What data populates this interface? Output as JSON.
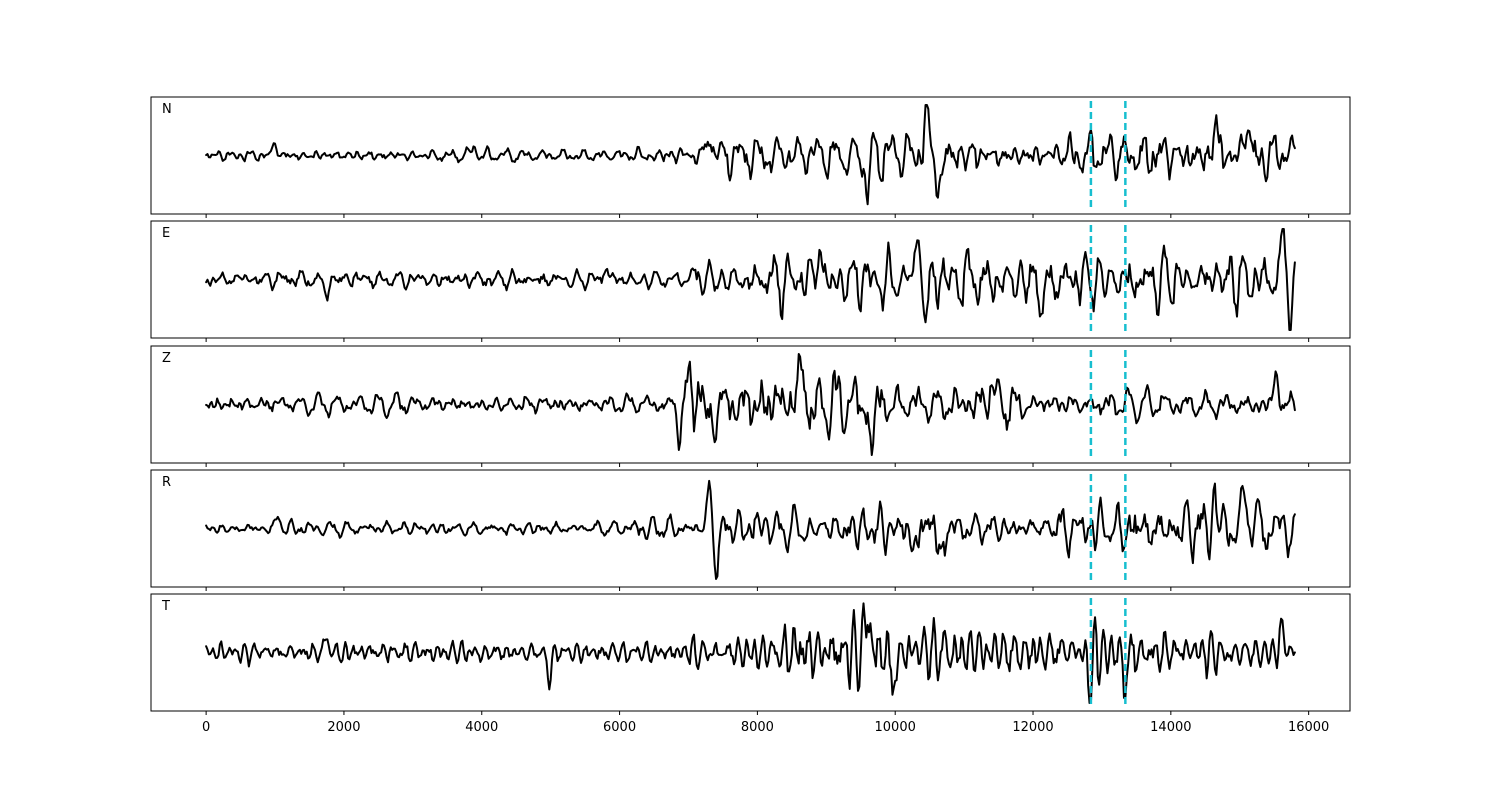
{
  "chart_data": {
    "type": "line",
    "title": "",
    "xlabel": "",
    "ylabel": "",
    "xlim": [
      -800,
      16600
    ],
    "x_ticks": [
      0,
      2000,
      4000,
      6000,
      8000,
      10000,
      12000,
      14000,
      16000
    ],
    "x_tick_labels": [
      "0",
      "2000",
      "4000",
      "6000",
      "8000",
      "10000",
      "12000",
      "14000",
      "16000"
    ],
    "y_ticks_shown": false,
    "grid": false,
    "legend": "none",
    "samples": 15800,
    "line_color": "#000000",
    "marker_color": "#17becf",
    "markers": [
      12840,
      13340
    ],
    "panels": [
      {
        "label": "N",
        "features": [
          {
            "x": 1000,
            "y": 0.28
          },
          {
            "x": 3900,
            "y": 0.22
          },
          {
            "x": 7300,
            "y": 0.55
          },
          {
            "x": 9600,
            "y": -0.72
          },
          {
            "x": 10450,
            "y": 1.0
          },
          {
            "x": 10630,
            "y": -0.9
          },
          {
            "x": 14650,
            "y": 0.75
          },
          {
            "x": 15100,
            "y": 0.85
          }
        ],
        "segments": [
          {
            "x0": 0,
            "x1": 6200,
            "amp": 0.12
          },
          {
            "x0": 6200,
            "x1": 7200,
            "amp": 0.18
          },
          {
            "x0": 7200,
            "x1": 9500,
            "amp": 0.35
          },
          {
            "x0": 9500,
            "x1": 11300,
            "amp": 0.45
          },
          {
            "x0": 11300,
            "x1": 12500,
            "amp": 0.25
          },
          {
            "x0": 12500,
            "x1": 15800,
            "amp": 0.48
          }
        ]
      },
      {
        "label": "E",
        "features": [
          {
            "x": 1750,
            "y": -0.32
          },
          {
            "x": 5800,
            "y": 0.3
          },
          {
            "x": 8900,
            "y": 0.75
          },
          {
            "x": 10300,
            "y": 1.0
          },
          {
            "x": 10450,
            "y": -0.8
          },
          {
            "x": 12150,
            "y": -0.65
          },
          {
            "x": 15630,
            "y": 0.95
          },
          {
            "x": 15730,
            "y": -0.75
          }
        ],
        "segments": [
          {
            "x0": 0,
            "x1": 7000,
            "amp": 0.18
          },
          {
            "x0": 7000,
            "x1": 8200,
            "amp": 0.38
          },
          {
            "x0": 8200,
            "x1": 11500,
            "amp": 0.55
          },
          {
            "x0": 11500,
            "x1": 15800,
            "amp": 0.5
          }
        ]
      },
      {
        "label": "Z",
        "features": [
          {
            "x": 7150,
            "y": 1.0
          },
          {
            "x": 7250,
            "y": -0.8
          },
          {
            "x": 8620,
            "y": 0.9
          },
          {
            "x": 9650,
            "y": -0.9
          },
          {
            "x": 11400,
            "y": 0.68
          },
          {
            "x": 15520,
            "y": 0.6
          }
        ],
        "segments": [
          {
            "x0": 0,
            "x1": 6800,
            "amp": 0.18
          },
          {
            "x0": 6800,
            "x1": 9800,
            "amp": 0.62
          },
          {
            "x0": 9800,
            "x1": 12000,
            "amp": 0.42
          },
          {
            "x0": 12000,
            "x1": 15800,
            "amp": 0.25
          }
        ]
      },
      {
        "label": "R",
        "features": [
          {
            "x": 1050,
            "y": 0.25
          },
          {
            "x": 7300,
            "y": 0.9
          },
          {
            "x": 7400,
            "y": -0.78
          },
          {
            "x": 10330,
            "y": -0.85
          },
          {
            "x": 10470,
            "y": 0.8
          },
          {
            "x": 10610,
            "y": -1.0
          },
          {
            "x": 14620,
            "y": 0.8
          },
          {
            "x": 15100,
            "y": 1.0
          }
        ],
        "segments": [
          {
            "x0": 0,
            "x1": 6200,
            "amp": 0.13
          },
          {
            "x0": 6200,
            "x1": 7200,
            "amp": 0.2
          },
          {
            "x0": 7200,
            "x1": 9800,
            "amp": 0.42
          },
          {
            "x0": 9800,
            "x1": 10900,
            "amp": 0.5
          },
          {
            "x0": 10900,
            "x1": 12300,
            "amp": 0.25
          },
          {
            "x0": 12300,
            "x1": 15800,
            "amp": 0.55
          }
        ]
      },
      {
        "label": "T",
        "features": [
          {
            "x": 1740,
            "y": 0.35
          },
          {
            "x": 4980,
            "y": -0.55
          },
          {
            "x": 9600,
            "y": 1.0
          },
          {
            "x": 9980,
            "y": -0.8
          },
          {
            "x": 12820,
            "y": -0.72
          },
          {
            "x": 13340,
            "y": -0.7
          },
          {
            "x": 15620,
            "y": 0.58
          }
        ],
        "segments": [
          {
            "x0": 0,
            "x1": 7000,
            "amp": 0.22
          },
          {
            "x0": 7000,
            "x1": 8300,
            "amp": 0.32
          },
          {
            "x0": 8300,
            "x1": 11000,
            "amp": 0.62
          },
          {
            "x0": 11000,
            "x1": 12600,
            "amp": 0.42
          },
          {
            "x0": 12600,
            "x1": 13500,
            "amp": 0.55
          },
          {
            "x0": 13500,
            "x1": 15800,
            "amp": 0.35
          }
        ]
      }
    ]
  }
}
